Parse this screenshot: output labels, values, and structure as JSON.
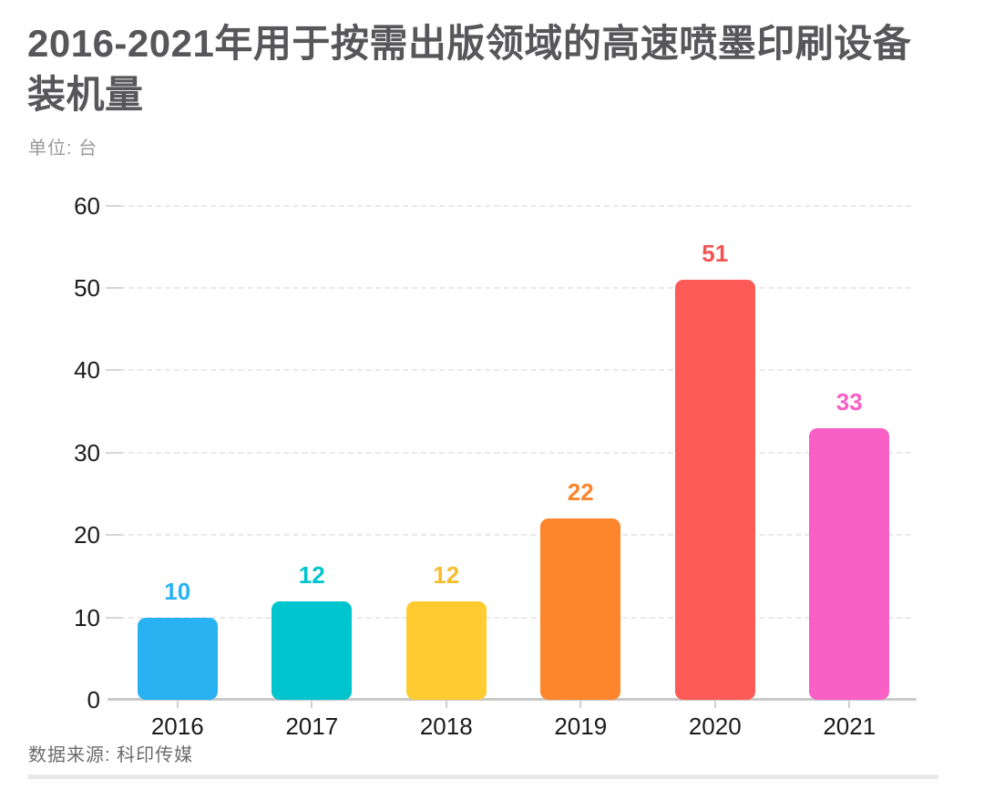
{
  "header": {
    "title": "2016-2021年用于按需出版领域的高速喷墨印刷设备装机量",
    "unit_label": "单位: 台"
  },
  "footer": {
    "source": "数据来源: 科印传媒"
  },
  "colors": {
    "title_text": "#57575a",
    "axis_label_text": "#1b1b1b",
    "unit_text": "#9a9a9a",
    "source_text": "#6b6b6b",
    "gridline": "#e9e9e9",
    "axis_line": "#c9c9c9"
  },
  "chart_data": {
    "type": "bar",
    "title": "2016-2021年用于按需出版领域的高速喷墨印刷设备装机量",
    "unit": "台",
    "categories": [
      "2016",
      "2017",
      "2018",
      "2019",
      "2020",
      "2021"
    ],
    "values": [
      10,
      12,
      12,
      22,
      51,
      33
    ],
    "bar_colors": [
      "#29B2F2",
      "#00C4CE",
      "#FECC30",
      "#FD862C",
      "#FC5B57",
      "#F95FC4"
    ],
    "value_label_colors": [
      "#29B2F2",
      "#00C4CE",
      "#F5BE2B",
      "#FD862C",
      "#F25453",
      "#F95FC4"
    ],
    "ylim": [
      0,
      60
    ],
    "yticks": [
      0,
      10,
      20,
      30,
      40,
      50,
      60
    ],
    "grid": "horizontal-dashed",
    "legend_position": "none",
    "data_labels": "above-bars",
    "source": "数据来源: 科印传媒"
  }
}
